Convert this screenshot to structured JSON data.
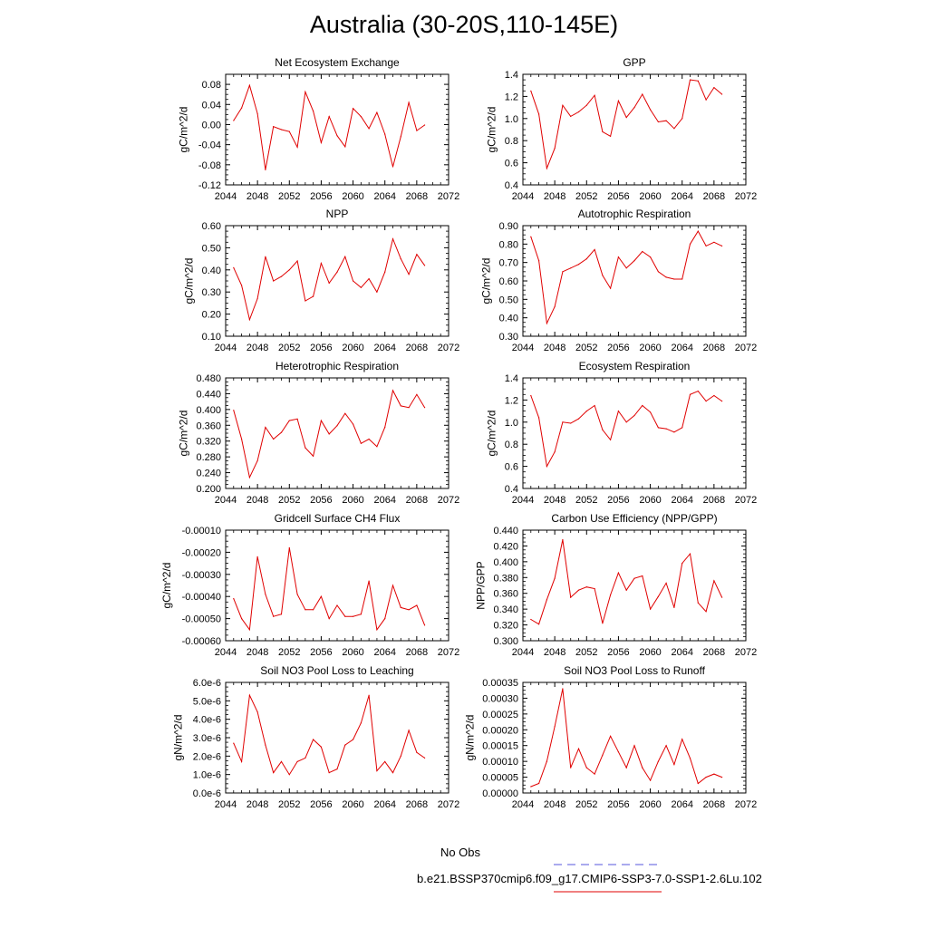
{
  "title": "Australia (30-20S,110-145E)",
  "legend": {
    "obs_label": "No Obs",
    "case_label": "b.e21.BSSP370cmip6.f09_g17.CMIP6-SSP3-7.0-SSP1-2.6Lu.102",
    "obs_color": "#5555dd",
    "case_color": "#e00000"
  },
  "chart_data": [
    {
      "type": "line",
      "title": "Net Ecosystem Exchange",
      "ylabel": "gC/m^2/d",
      "xlabel": "",
      "xlim": [
        2044,
        2072
      ],
      "ylim": [
        -0.12,
        0.1
      ],
      "xticks": [
        "2044",
        "2048",
        "2052",
        "2056",
        "2060",
        "2064",
        "2068",
        "2072"
      ],
      "yticks": [
        "-0.12",
        "-0.08",
        "-0.04",
        "0.00",
        "0.04",
        "0.08"
      ],
      "yticks_values": [
        -0.12,
        -0.08,
        -0.04,
        0.0,
        0.04,
        0.08
      ],
      "x": [
        2045,
        2046,
        2047,
        2048,
        2049,
        2050,
        2051,
        2052,
        2053,
        2054,
        2055,
        2056,
        2057,
        2058,
        2059,
        2060,
        2061,
        2062,
        2063,
        2064,
        2065,
        2066,
        2067,
        2068,
        2069
      ],
      "series": [
        {
          "values": [
            0.008,
            0.033,
            0.078,
            0.022,
            -0.09,
            -0.004,
            -0.01,
            -0.014,
            -0.045,
            0.065,
            0.027,
            -0.036,
            0.016,
            -0.022,
            -0.044,
            0.032,
            0.016,
            -0.008,
            0.024,
            -0.019,
            -0.084,
            -0.024,
            0.044,
            -0.012,
            -0.001
          ]
        }
      ]
    },
    {
      "type": "line",
      "title": "GPP",
      "ylabel": "gC/m^2/d",
      "xlabel": "",
      "xlim": [
        2044,
        2072
      ],
      "ylim": [
        0.4,
        1.4
      ],
      "xticks": [
        "2044",
        "2048",
        "2052",
        "2056",
        "2060",
        "2064",
        "2068",
        "2072"
      ],
      "yticks": [
        "0.4",
        "0.6",
        "0.8",
        "1.0",
        "1.2",
        "1.4"
      ],
      "yticks_values": [
        0.4,
        0.6,
        0.8,
        1.0,
        1.2,
        1.4
      ],
      "x": [
        2045,
        2046,
        2047,
        2048,
        2049,
        2050,
        2051,
        2052,
        2053,
        2054,
        2055,
        2056,
        2057,
        2058,
        2059,
        2060,
        2061,
        2062,
        2063,
        2064,
        2065,
        2066,
        2067,
        2068,
        2069
      ],
      "series": [
        {
          "values": [
            1.25,
            1.04,
            0.55,
            0.73,
            1.12,
            1.02,
            1.06,
            1.12,
            1.21,
            0.88,
            0.84,
            1.16,
            1.01,
            1.1,
            1.22,
            1.08,
            0.97,
            0.98,
            0.91,
            1.0,
            1.35,
            1.34,
            1.17,
            1.28,
            1.22
          ]
        }
      ]
    },
    {
      "type": "line",
      "title": "NPP",
      "ylabel": "gC/m^2/d",
      "xlabel": "",
      "xlim": [
        2044,
        2072
      ],
      "ylim": [
        0.1,
        0.6
      ],
      "xticks": [
        "2044",
        "2048",
        "2052",
        "2056",
        "2060",
        "2064",
        "2068",
        "2072"
      ],
      "yticks": [
        "0.10",
        "0.20",
        "0.30",
        "0.40",
        "0.50",
        "0.60"
      ],
      "yticks_values": [
        0.1,
        0.2,
        0.3,
        0.4,
        0.5,
        0.6
      ],
      "x": [
        2045,
        2046,
        2047,
        2048,
        2049,
        2050,
        2051,
        2052,
        2053,
        2054,
        2055,
        2056,
        2057,
        2058,
        2059,
        2060,
        2061,
        2062,
        2063,
        2064,
        2065,
        2066,
        2067,
        2068,
        2069
      ],
      "series": [
        {
          "values": [
            0.41,
            0.33,
            0.175,
            0.27,
            0.46,
            0.35,
            0.37,
            0.4,
            0.44,
            0.26,
            0.28,
            0.43,
            0.34,
            0.39,
            0.46,
            0.35,
            0.32,
            0.36,
            0.3,
            0.39,
            0.54,
            0.45,
            0.38,
            0.47,
            0.42
          ]
        }
      ]
    },
    {
      "type": "line",
      "title": "Autotrophic Respiration",
      "ylabel": "gC/m^2/d",
      "xlabel": "",
      "xlim": [
        2044,
        2072
      ],
      "ylim": [
        0.3,
        0.9
      ],
      "xticks": [
        "2044",
        "2048",
        "2052",
        "2056",
        "2060",
        "2064",
        "2068",
        "2072"
      ],
      "yticks": [
        "0.30",
        "0.40",
        "0.50",
        "0.60",
        "0.70",
        "0.80",
        "0.90"
      ],
      "yticks_values": [
        0.3,
        0.4,
        0.5,
        0.6,
        0.7,
        0.8,
        0.9
      ],
      "x": [
        2045,
        2046,
        2047,
        2048,
        2049,
        2050,
        2051,
        2052,
        2053,
        2054,
        2055,
        2056,
        2057,
        2058,
        2059,
        2060,
        2061,
        2062,
        2063,
        2064,
        2065,
        2066,
        2067,
        2068,
        2069
      ],
      "series": [
        {
          "values": [
            0.84,
            0.71,
            0.37,
            0.46,
            0.65,
            0.67,
            0.69,
            0.72,
            0.77,
            0.63,
            0.56,
            0.73,
            0.67,
            0.71,
            0.76,
            0.73,
            0.65,
            0.62,
            0.61,
            0.61,
            0.8,
            0.87,
            0.79,
            0.81,
            0.79
          ]
        }
      ]
    },
    {
      "type": "line",
      "title": "Heterotrophic Respiration",
      "ylabel": "gC/m^2/d",
      "xlabel": "",
      "xlim": [
        2044,
        2072
      ],
      "ylim": [
        0.2,
        0.48
      ],
      "xticks": [
        "2044",
        "2048",
        "2052",
        "2056",
        "2060",
        "2064",
        "2068",
        "2072"
      ],
      "yticks": [
        "0.200",
        "0.240",
        "0.280",
        "0.320",
        "0.360",
        "0.400",
        "0.440",
        "0.480"
      ],
      "yticks_values": [
        0.2,
        0.24,
        0.28,
        0.32,
        0.36,
        0.4,
        0.44,
        0.48
      ],
      "x": [
        2045,
        2046,
        2047,
        2048,
        2049,
        2050,
        2051,
        2052,
        2053,
        2054,
        2055,
        2056,
        2057,
        2058,
        2059,
        2060,
        2061,
        2062,
        2063,
        2064,
        2065,
        2066,
        2067,
        2068,
        2069
      ],
      "series": [
        {
          "values": [
            0.398,
            0.325,
            0.228,
            0.27,
            0.355,
            0.325,
            0.342,
            0.372,
            0.376,
            0.303,
            0.282,
            0.372,
            0.338,
            0.359,
            0.39,
            0.363,
            0.314,
            0.325,
            0.306,
            0.355,
            0.448,
            0.409,
            0.405,
            0.438,
            0.405
          ]
        }
      ]
    },
    {
      "type": "line",
      "title": "Ecosystem Respiration",
      "ylabel": "gC/m^2/d",
      "xlabel": "",
      "xlim": [
        2044,
        2072
      ],
      "ylim": [
        0.4,
        1.4
      ],
      "xticks": [
        "2044",
        "2048",
        "2052",
        "2056",
        "2060",
        "2064",
        "2068",
        "2072"
      ],
      "yticks": [
        "0.4",
        "0.6",
        "0.8",
        "1.0",
        "1.2",
        "1.4"
      ],
      "yticks_values": [
        0.4,
        0.6,
        0.8,
        1.0,
        1.2,
        1.4
      ],
      "x": [
        2045,
        2046,
        2047,
        2048,
        2049,
        2050,
        2051,
        2052,
        2053,
        2054,
        2055,
        2056,
        2057,
        2058,
        2059,
        2060,
        2061,
        2062,
        2063,
        2064,
        2065,
        2066,
        2067,
        2068,
        2069
      ],
      "series": [
        {
          "values": [
            1.24,
            1.04,
            0.6,
            0.73,
            1.0,
            0.99,
            1.03,
            1.1,
            1.15,
            0.93,
            0.84,
            1.1,
            1.0,
            1.06,
            1.15,
            1.09,
            0.95,
            0.94,
            0.91,
            0.95,
            1.25,
            1.28,
            1.19,
            1.24,
            1.19
          ]
        }
      ]
    },
    {
      "type": "line",
      "title": "Gridcell Surface CH4 Flux",
      "ylabel": "gC/m^2/d",
      "xlabel": "",
      "xlim": [
        2044,
        2072
      ],
      "ylim": [
        -0.0006,
        -0.0001
      ],
      "xticks": [
        "2044",
        "2048",
        "2052",
        "2056",
        "2060",
        "2064",
        "2068",
        "2072"
      ],
      "yticks": [
        "-0.00060",
        "-0.00050",
        "-0.00040",
        "-0.00030",
        "-0.00020",
        "-0.00010"
      ],
      "yticks_values": [
        -0.0006,
        -0.0005,
        -0.0004,
        -0.0003,
        -0.0002,
        -0.0001
      ],
      "x": [
        2045,
        2046,
        2047,
        2048,
        2049,
        2050,
        2051,
        2052,
        2053,
        2054,
        2055,
        2056,
        2057,
        2058,
        2059,
        2060,
        2061,
        2062,
        2063,
        2064,
        2065,
        2066,
        2067,
        2068,
        2069
      ],
      "series": [
        {
          "values": [
            -0.00041,
            -0.0005,
            -0.00055,
            -0.00022,
            -0.00039,
            -0.00049,
            -0.00048,
            -0.00018,
            -0.00039,
            -0.00046,
            -0.00046,
            -0.0004,
            -0.0005,
            -0.00044,
            -0.00049,
            -0.00049,
            -0.00048,
            -0.00033,
            -0.00055,
            -0.0005,
            -0.00035,
            -0.00045,
            -0.00046,
            -0.00044,
            -0.00053
          ]
        }
      ]
    },
    {
      "type": "line",
      "title": "Carbon Use Efficiency (NPP/GPP)",
      "ylabel": "NPP/GPP",
      "xlabel": "",
      "xlim": [
        2044,
        2072
      ],
      "ylim": [
        0.3,
        0.44
      ],
      "xticks": [
        "2044",
        "2048",
        "2052",
        "2056",
        "2060",
        "2064",
        "2068",
        "2072"
      ],
      "yticks": [
        "0.300",
        "0.320",
        "0.340",
        "0.360",
        "0.380",
        "0.400",
        "0.420",
        "0.440"
      ],
      "yticks_values": [
        0.3,
        0.32,
        0.34,
        0.36,
        0.38,
        0.4,
        0.42,
        0.44
      ],
      "x": [
        2045,
        2046,
        2047,
        2048,
        2049,
        2050,
        2051,
        2052,
        2053,
        2054,
        2055,
        2056,
        2057,
        2058,
        2059,
        2060,
        2061,
        2062,
        2063,
        2064,
        2065,
        2066,
        2067,
        2068,
        2069
      ],
      "series": [
        {
          "values": [
            0.327,
            0.321,
            0.352,
            0.379,
            0.428,
            0.355,
            0.364,
            0.368,
            0.366,
            0.322,
            0.358,
            0.386,
            0.364,
            0.379,
            0.382,
            0.34,
            0.356,
            0.373,
            0.342,
            0.398,
            0.41,
            0.348,
            0.337,
            0.376,
            0.355
          ]
        }
      ]
    },
    {
      "type": "line",
      "title": "Soil NO3 Pool Loss to Leaching",
      "ylabel": "gN/m^2/d",
      "xlabel": "",
      "xlim": [
        2044,
        2072
      ],
      "ylim": [
        0.0,
        6e-06
      ],
      "xticks": [
        "2044",
        "2048",
        "2052",
        "2056",
        "2060",
        "2064",
        "2068",
        "2072"
      ],
      "yticks": [
        "0.0e-6",
        "1.0e-6",
        "2.0e-6",
        "3.0e-6",
        "4.0e-6",
        "5.0e-6",
        "6.0e-6"
      ],
      "yticks_values": [
        0.0,
        1e-06,
        2e-06,
        3e-06,
        4e-06,
        5e-06,
        6e-06
      ],
      "x": [
        2045,
        2046,
        2047,
        2048,
        2049,
        2050,
        2051,
        2052,
        2053,
        2054,
        2055,
        2056,
        2057,
        2058,
        2059,
        2060,
        2061,
        2062,
        2063,
        2064,
        2065,
        2066,
        2067,
        2068,
        2069
      ],
      "series": [
        {
          "values": [
            2.7e-06,
            1.7e-06,
            5.3e-06,
            4.4e-06,
            2.6e-06,
            1.1e-06,
            1.7e-06,
            1e-06,
            1.7e-06,
            1.9e-06,
            2.9e-06,
            2.5e-06,
            1.1e-06,
            1.3e-06,
            2.6e-06,
            2.9e-06,
            3.8e-06,
            5.3e-06,
            1.2e-06,
            1.7e-06,
            1.1e-06,
            2e-06,
            3.4e-06,
            2.2e-06,
            1.9e-06
          ]
        }
      ]
    },
    {
      "type": "line",
      "title": "Soil NO3 Pool Loss to Runoff",
      "ylabel": "gN/m^2/d",
      "xlabel": "",
      "xlim": [
        2044,
        2072
      ],
      "ylim": [
        0.0,
        0.00035
      ],
      "xticks": [
        "2044",
        "2048",
        "2052",
        "2056",
        "2060",
        "2064",
        "2068",
        "2072"
      ],
      "yticks": [
        "0.00000",
        "0.00005",
        "0.00010",
        "0.00015",
        "0.00020",
        "0.00025",
        "0.00030",
        "0.00035"
      ],
      "yticks_values": [
        0.0,
        5e-05,
        0.0001,
        0.00015,
        0.0002,
        0.00025,
        0.0003,
        0.00035
      ],
      "x": [
        2045,
        2046,
        2047,
        2048,
        2049,
        2050,
        2051,
        2052,
        2053,
        2054,
        2055,
        2056,
        2057,
        2058,
        2059,
        2060,
        2061,
        2062,
        2063,
        2064,
        2065,
        2066,
        2067,
        2068,
        2069
      ],
      "series": [
        {
          "values": [
            2e-05,
            3e-05,
            0.0001,
            0.00021,
            0.00033,
            8e-05,
            0.00014,
            8e-05,
            6e-05,
            0.00012,
            0.00018,
            0.00013,
            8e-05,
            0.00015,
            8e-05,
            4e-05,
            0.0001,
            0.00015,
            9e-05,
            0.00017,
            0.00011,
            3e-05,
            5e-05,
            6e-05,
            5e-05
          ]
        }
      ]
    }
  ]
}
